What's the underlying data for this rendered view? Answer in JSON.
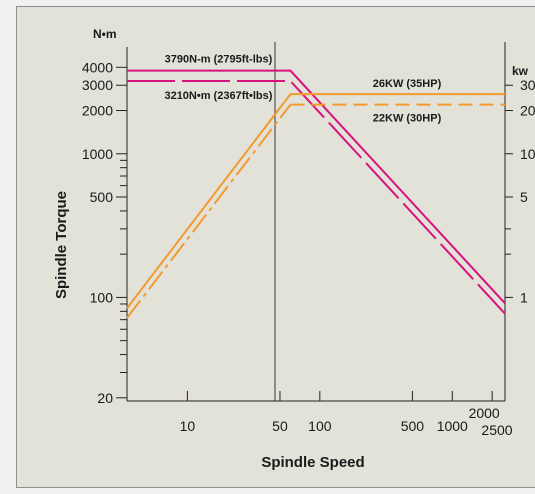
{
  "chart_data": {
    "type": "line",
    "title": "",
    "xlabel": "Spindle Speed",
    "ylabel": "Spindle Torque",
    "y_unit": "N•m",
    "y2_unit": "kw",
    "x_scale": "log",
    "y_scale": "log",
    "xlim": [
      3.5,
      2500
    ],
    "ylim": [
      19,
      6000
    ],
    "x_ticks": [
      {
        "value": 10,
        "label": "10"
      },
      {
        "value": 50,
        "label": "50"
      },
      {
        "value": 100,
        "label": "100"
      },
      {
        "value": 500,
        "label": "500"
      },
      {
        "value": 1000,
        "label": "1000"
      },
      {
        "value": 2000,
        "label": "2000"
      },
      {
        "value": 2500,
        "label": "2500"
      }
    ],
    "y_ticks": [
      {
        "value": 20,
        "label": "20"
      },
      {
        "value": 100,
        "label": "100"
      },
      {
        "value": 500,
        "label": "500"
      },
      {
        "value": 1000,
        "label": "1000"
      },
      {
        "value": 2000,
        "label": "2000"
      },
      {
        "value": 3000,
        "label": "3000"
      },
      {
        "value": 4000,
        "label": "4000"
      }
    ],
    "y_minor_ticks": [
      30,
      40,
      50,
      60,
      70,
      80,
      90,
      200,
      300,
      400,
      600,
      700,
      800,
      900
    ],
    "y2_ticks": [
      {
        "value": 3000,
        "label": "30"
      },
      {
        "value": 2000,
        "label": "20"
      },
      {
        "value": 1000,
        "label": "10"
      },
      {
        "value": 500,
        "label": "5"
      },
      {
        "value": 100,
        "label": "1"
      }
    ],
    "y2_minor_ticks": [
      200,
      300
    ],
    "series": [
      {
        "name": "3790N-m (2795ft-lbs)",
        "color": "#d8127d",
        "dash": "solid",
        "points": [
          [
            3.5,
            3790
          ],
          [
            60,
            3790
          ],
          [
            2500,
            91
          ]
        ]
      },
      {
        "name": "3210N•m (2367ft•lbs)",
        "color": "#d8127d",
        "dash": "dashed",
        "points": [
          [
            3.5,
            3210
          ],
          [
            60,
            3210
          ],
          [
            2500,
            77
          ]
        ]
      },
      {
        "name": "26KW (35HP)",
        "color": "#f29a2e",
        "dash": "solid",
        "points": [
          [
            3.5,
            84
          ],
          [
            60,
            2600
          ],
          [
            2500,
            2600
          ]
        ]
      },
      {
        "name": "22KW (30HP)",
        "color": "#f29a2e",
        "dash": "dashdot-then-dash",
        "points": [
          [
            3.5,
            72
          ],
          [
            60,
            2200
          ],
          [
            2500,
            2200
          ]
        ]
      }
    ],
    "annotations": [
      {
        "text": "3790N-m (2795ft-lbs)"
      },
      {
        "text": "3210N•m (2367ft•lbs)"
      },
      {
        "text": "26KW (35HP)"
      },
      {
        "text": "22KW (30HP)"
      }
    ],
    "grid": false,
    "legend": "none"
  }
}
